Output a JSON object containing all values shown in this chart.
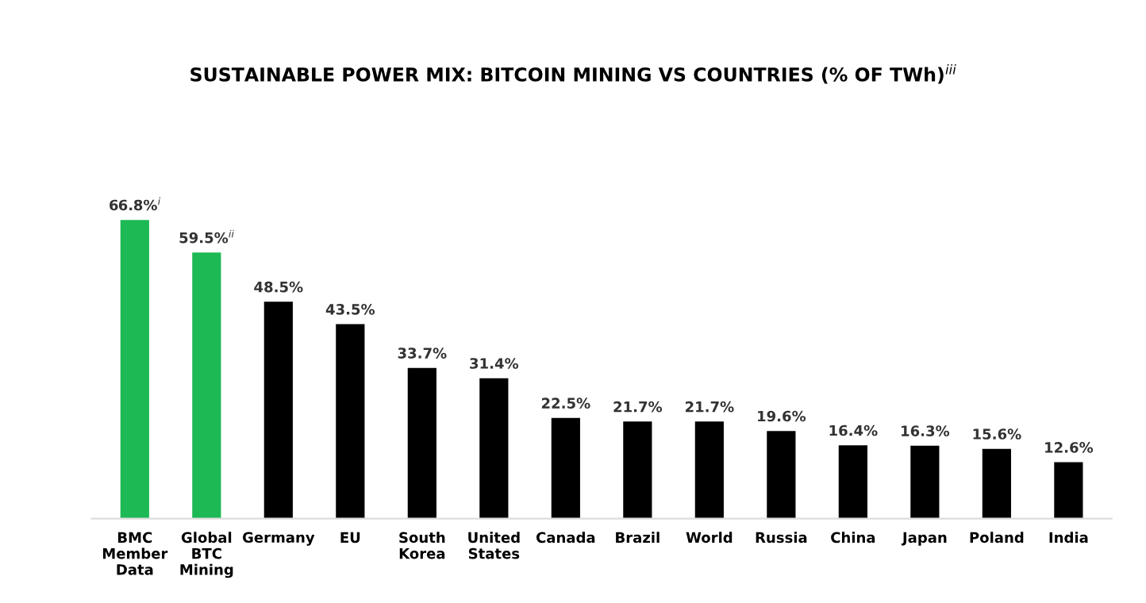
{
  "chart_data": {
    "type": "bar",
    "title": "SUSTAINABLE POWER MIX: BITCOIN MINING VS COUNTRIES (% OF TWh)$^{iii}$",
    "categories": [
      "BMC\nMember\nData",
      "Global\nBTC\nMining",
      "Germany",
      "EU",
      "South\nKorea",
      "United\nStates",
      "Canada",
      "Brazil",
      "World",
      "Russia",
      "China",
      "Japan",
      "Poland",
      "India"
    ],
    "values": [
      66.8,
      59.5,
      48.5,
      43.5,
      33.7,
      31.4,
      22.5,
      21.7,
      21.7,
      19.6,
      16.4,
      16.3,
      15.6,
      12.6
    ],
    "colors": [
      "#1db954",
      "#1db954",
      "#000000",
      "#000000",
      "#000000",
      "#000000",
      "#000000",
      "#000000",
      "#000000",
      "#000000",
      "#000000",
      "#000000",
      "#000000",
      "#000000"
    ],
    "value_labels": [
      "66.8%$^{i}$",
      "59.5%$^{ii}$",
      "48.5%",
      "43.5%",
      "33.7%",
      "31.4%",
      "22.5%",
      "21.7%",
      "21.7%",
      "19.6%",
      "16.4%",
      "16.3%",
      "15.6%",
      "12.6%"
    ],
    "grid": false,
    "legend": false
  }
}
